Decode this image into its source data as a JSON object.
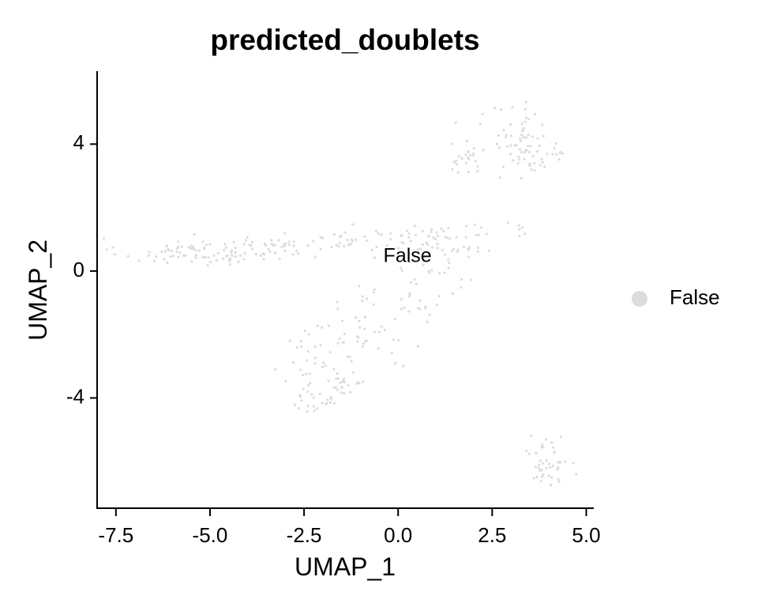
{
  "chart_data": {
    "type": "scatter",
    "title": "predicted_doublets",
    "xlabel": "UMAP_1",
    "ylabel": "UMAP_2",
    "xlim": [
      -8.0,
      5.2
    ],
    "ylim": [
      -7.5,
      6.3
    ],
    "xticks": [
      -7.5,
      -5.0,
      -2.5,
      0.0,
      2.5,
      5.0
    ],
    "xtick_labels": [
      "-7.5",
      "-5.0",
      "-2.5",
      "0.0",
      "2.5",
      "5.0"
    ],
    "yticks": [
      4,
      0,
      -4
    ],
    "ytick_labels": [
      "4",
      "0",
      "-4"
    ],
    "grid": false,
    "legend_position": "right",
    "series": [
      {
        "name": "False",
        "color": "#dcdcdc",
        "clusters": [
          {
            "cx": -5.4,
            "cy": 0.6,
            "sx": 1.0,
            "sy": 0.22,
            "n": 85
          },
          {
            "cx": -3.3,
            "cy": 0.8,
            "sx": 0.6,
            "sy": 0.2,
            "n": 30
          },
          {
            "cx": -1.2,
            "cy": 0.95,
            "sx": 0.7,
            "sy": 0.2,
            "n": 35
          },
          {
            "cx": 1.0,
            "cy": 1.0,
            "sx": 0.8,
            "sy": 0.35,
            "n": 55
          },
          {
            "cx": 1.4,
            "cy": 0.0,
            "sx": 0.5,
            "sy": 0.5,
            "n": 25
          },
          {
            "cx": -0.9,
            "cy": -1.8,
            "sx": 0.5,
            "sy": 0.7,
            "n": 40
          },
          {
            "cx": -2.3,
            "cy": -2.9,
            "sx": 0.4,
            "sy": 0.6,
            "n": 30
          },
          {
            "cx": -1.5,
            "cy": -3.5,
            "sx": 0.35,
            "sy": 0.35,
            "n": 25
          },
          {
            "cx": -2.0,
            "cy": -4.1,
            "sx": 0.4,
            "sy": 0.2,
            "n": 20
          },
          {
            "cx": 0.3,
            "cy": -1.3,
            "sx": 0.4,
            "sy": 0.5,
            "n": 20
          },
          {
            "cx": 1.8,
            "cy": 3.7,
            "sx": 0.25,
            "sy": 0.35,
            "n": 25
          },
          {
            "cx": 3.4,
            "cy": 4.0,
            "sx": 0.45,
            "sy": 0.6,
            "n": 70
          },
          {
            "cx": 4.2,
            "cy": 3.7,
            "sx": 0.2,
            "sy": 0.1,
            "n": 6
          },
          {
            "cx": 3.2,
            "cy": 1.3,
            "sx": 0.2,
            "sy": 0.1,
            "n": 6
          },
          {
            "cx": 4.0,
            "cy": -6.0,
            "sx": 0.25,
            "sy": 0.45,
            "n": 45
          }
        ]
      }
    ],
    "annotations": [
      {
        "text": "False",
        "x": 0.25,
        "y": 0.45
      }
    ]
  }
}
